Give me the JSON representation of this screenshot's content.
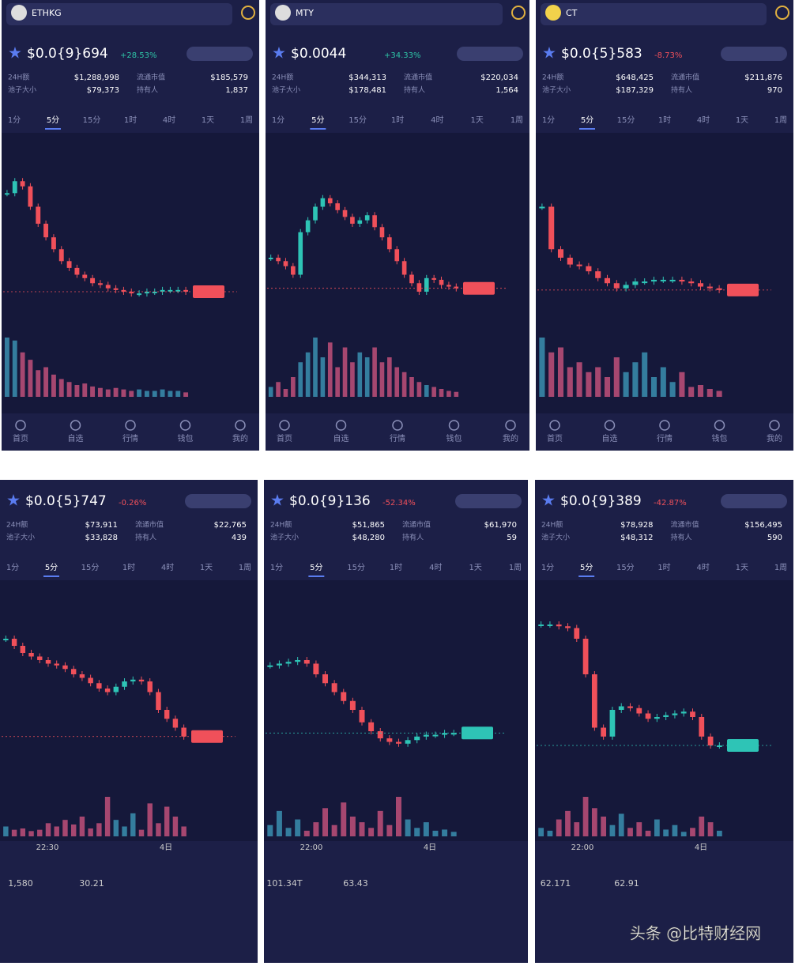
{
  "screens": [
    {
      "token": "ETHKG",
      "price": "$0.0{9}694",
      "change": "+28.53%",
      "change_color": "#2ec4a6",
      "stats": [
        {
          "label": "24H额",
          "value": "$1,288,998"
        },
        {
          "label": "流通市值",
          "value": "$185,579"
        },
        {
          "label": "池子大小",
          "value": "$79,373"
        },
        {
          "label": "持有人",
          "value": "1,837"
        }
      ],
      "tabs": [
        "1分",
        "5分",
        "15分",
        "1时",
        "4时",
        "1天",
        "1周"
      ],
      "chart": {
        "type": "candlestick",
        "ylim": [
          0,
          100
        ],
        "closes": [
          78,
          85,
          82,
          70,
          60,
          52,
          45,
          38,
          34,
          30,
          28,
          25,
          24,
          22,
          21,
          20,
          19,
          19,
          20,
          20,
          21,
          21,
          21,
          20
        ],
        "volumes": [
          40,
          38,
          30,
          25,
          18,
          20,
          15,
          12,
          10,
          8,
          9,
          7,
          6,
          5,
          6,
          5,
          4,
          5,
          4,
          4,
          5,
          4,
          4,
          3
        ]
      },
      "nav": [
        "首页",
        "自选",
        "行情",
        "钱包",
        "我的"
      ]
    },
    {
      "token": "MTY",
      "price": "$0.0044",
      "change": "+34.33%",
      "change_color": "#2ec4a6",
      "stats": [
        {
          "label": "24H额",
          "value": "$344,313"
        },
        {
          "label": "流通市值",
          "value": "$220,034"
        },
        {
          "label": "池子大小",
          "value": "$178,481"
        },
        {
          "label": "持有人",
          "value": "1,564"
        }
      ],
      "tabs": [
        "1分",
        "5分",
        "15分",
        "1时",
        "4时",
        "1天",
        "1周"
      ],
      "chart": {
        "type": "candlestick",
        "ylim": [
          0,
          100
        ],
        "closes": [
          40,
          38,
          35,
          30,
          55,
          62,
          70,
          75,
          72,
          68,
          64,
          60,
          62,
          65,
          58,
          52,
          45,
          38,
          30,
          25,
          20,
          28,
          27,
          24,
          23,
          22
        ],
        "volumes": [
          10,
          15,
          8,
          20,
          35,
          45,
          60,
          40,
          55,
          30,
          50,
          35,
          45,
          40,
          50,
          35,
          40,
          30,
          25,
          20,
          15,
          12,
          10,
          8,
          6,
          5
        ]
      },
      "nav": [
        "首页",
        "自选",
        "行情",
        "钱包",
        "我的"
      ]
    },
    {
      "token": "CT",
      "price": "$0.0{5}583",
      "change": "-8.73%",
      "change_color": "#f0505a",
      "stats": [
        {
          "label": "24H额",
          "value": "$648,425"
        },
        {
          "label": "流通市值",
          "value": "$211,876"
        },
        {
          "label": "池子大小",
          "value": "$187,329"
        },
        {
          "label": "持有人",
          "value": "970"
        }
      ],
      "tabs": [
        "1分",
        "5分",
        "15分",
        "1时",
        "4时",
        "1天",
        "1周"
      ],
      "chart": {
        "type": "candlestick",
        "ylim": [
          0,
          100
        ],
        "closes": [
          70,
          45,
          40,
          36,
          35,
          32,
          28,
          25,
          22,
          24,
          26,
          26,
          27,
          27,
          27,
          26,
          25,
          23,
          22,
          21
        ],
        "volumes": [
          60,
          45,
          50,
          30,
          35,
          25,
          30,
          20,
          40,
          25,
          35,
          45,
          20,
          30,
          15,
          25,
          10,
          12,
          8,
          6
        ]
      },
      "nav": [
        "首页",
        "自选",
        "行情",
        "钱包",
        "我的"
      ]
    },
    {
      "price": "$0.0{5}747",
      "change": "-0.26%",
      "change_color": "#f0505a",
      "stats": [
        {
          "label": "24H额",
          "value": "$73,911"
        },
        {
          "label": "流通市值",
          "value": "$22,765"
        },
        {
          "label": "池子大小",
          "value": "$33,828"
        },
        {
          "label": "持有人",
          "value": "439"
        }
      ],
      "tabs": [
        "1分",
        "5分",
        "15分",
        "1时",
        "4时",
        "1天",
        "1周"
      ],
      "chart": {
        "type": "candlestick",
        "ylim": [
          0,
          100
        ],
        "closes": [
          80,
          76,
          72,
          70,
          68,
          66,
          65,
          63,
          60,
          58,
          55,
          52,
          50,
          53,
          56,
          57,
          56,
          50,
          40,
          35,
          30,
          25
        ],
        "volumes": [
          15,
          10,
          12,
          8,
          10,
          20,
          15,
          25,
          18,
          30,
          12,
          20,
          60,
          25,
          15,
          35,
          10,
          50,
          20,
          45,
          30,
          15
        ]
      },
      "xlabels": [
        "22:30",
        "4日"
      ],
      "footer": [
        "1,580",
        "30.21"
      ]
    },
    {
      "price": "$0.0{9}136",
      "change": "-52.34%",
      "change_color": "#f0505a",
      "stats": [
        {
          "label": "24H额",
          "value": "$51,865"
        },
        {
          "label": "流通市值",
          "value": "$61,970"
        },
        {
          "label": "池子大小",
          "value": "$48,280"
        },
        {
          "label": "持有人",
          "value": "59"
        }
      ],
      "tabs": [
        "1分",
        "5分",
        "15分",
        "1时",
        "4时",
        "1天",
        "1周"
      ],
      "chart": {
        "type": "candlestick",
        "ylim": [
          0,
          100
        ],
        "closes": [
          65,
          66,
          67,
          68,
          66,
          60,
          55,
          50,
          45,
          40,
          33,
          28,
          24,
          22,
          21,
          23,
          25,
          26,
          26,
          27,
          27
        ],
        "volumes": [
          20,
          45,
          15,
          30,
          10,
          25,
          50,
          20,
          60,
          35,
          25,
          15,
          45,
          20,
          70,
          30,
          15,
          25,
          10,
          12,
          8
        ]
      },
      "xlabels": [
        "22:00",
        "4日"
      ],
      "footer": [
        "101.34T",
        "63.43"
      ]
    },
    {
      "price": "$0.0{9}389",
      "change": "-42.87%",
      "change_color": "#f0505a",
      "stats": [
        {
          "label": "24H额",
          "value": "$78,928"
        },
        {
          "label": "流通市值",
          "value": "$156,495"
        },
        {
          "label": "池子大小",
          "value": "$48,312"
        },
        {
          "label": "持有人",
          "value": "590"
        }
      ],
      "tabs": [
        "1分",
        "5分",
        "15分",
        "1时",
        "4时",
        "1天",
        "1周"
      ],
      "chart": {
        "type": "candlestick",
        "ylim": [
          0,
          100
        ],
        "closes": [
          88,
          88,
          87,
          86,
          80,
          60,
          30,
          25,
          40,
          42,
          41,
          38,
          35,
          36,
          37,
          38,
          39,
          36,
          25,
          20,
          20
        ],
        "volumes": [
          15,
          10,
          30,
          45,
          25,
          70,
          50,
          35,
          20,
          40,
          15,
          25,
          10,
          30,
          12,
          20,
          8,
          15,
          35,
          25,
          10
        ]
      },
      "xlabels": [
        "22:00",
        "4日"
      ],
      "footer": [
        "62.171",
        "62.91"
      ]
    }
  ],
  "watermark": "头条 @比特财经网"
}
